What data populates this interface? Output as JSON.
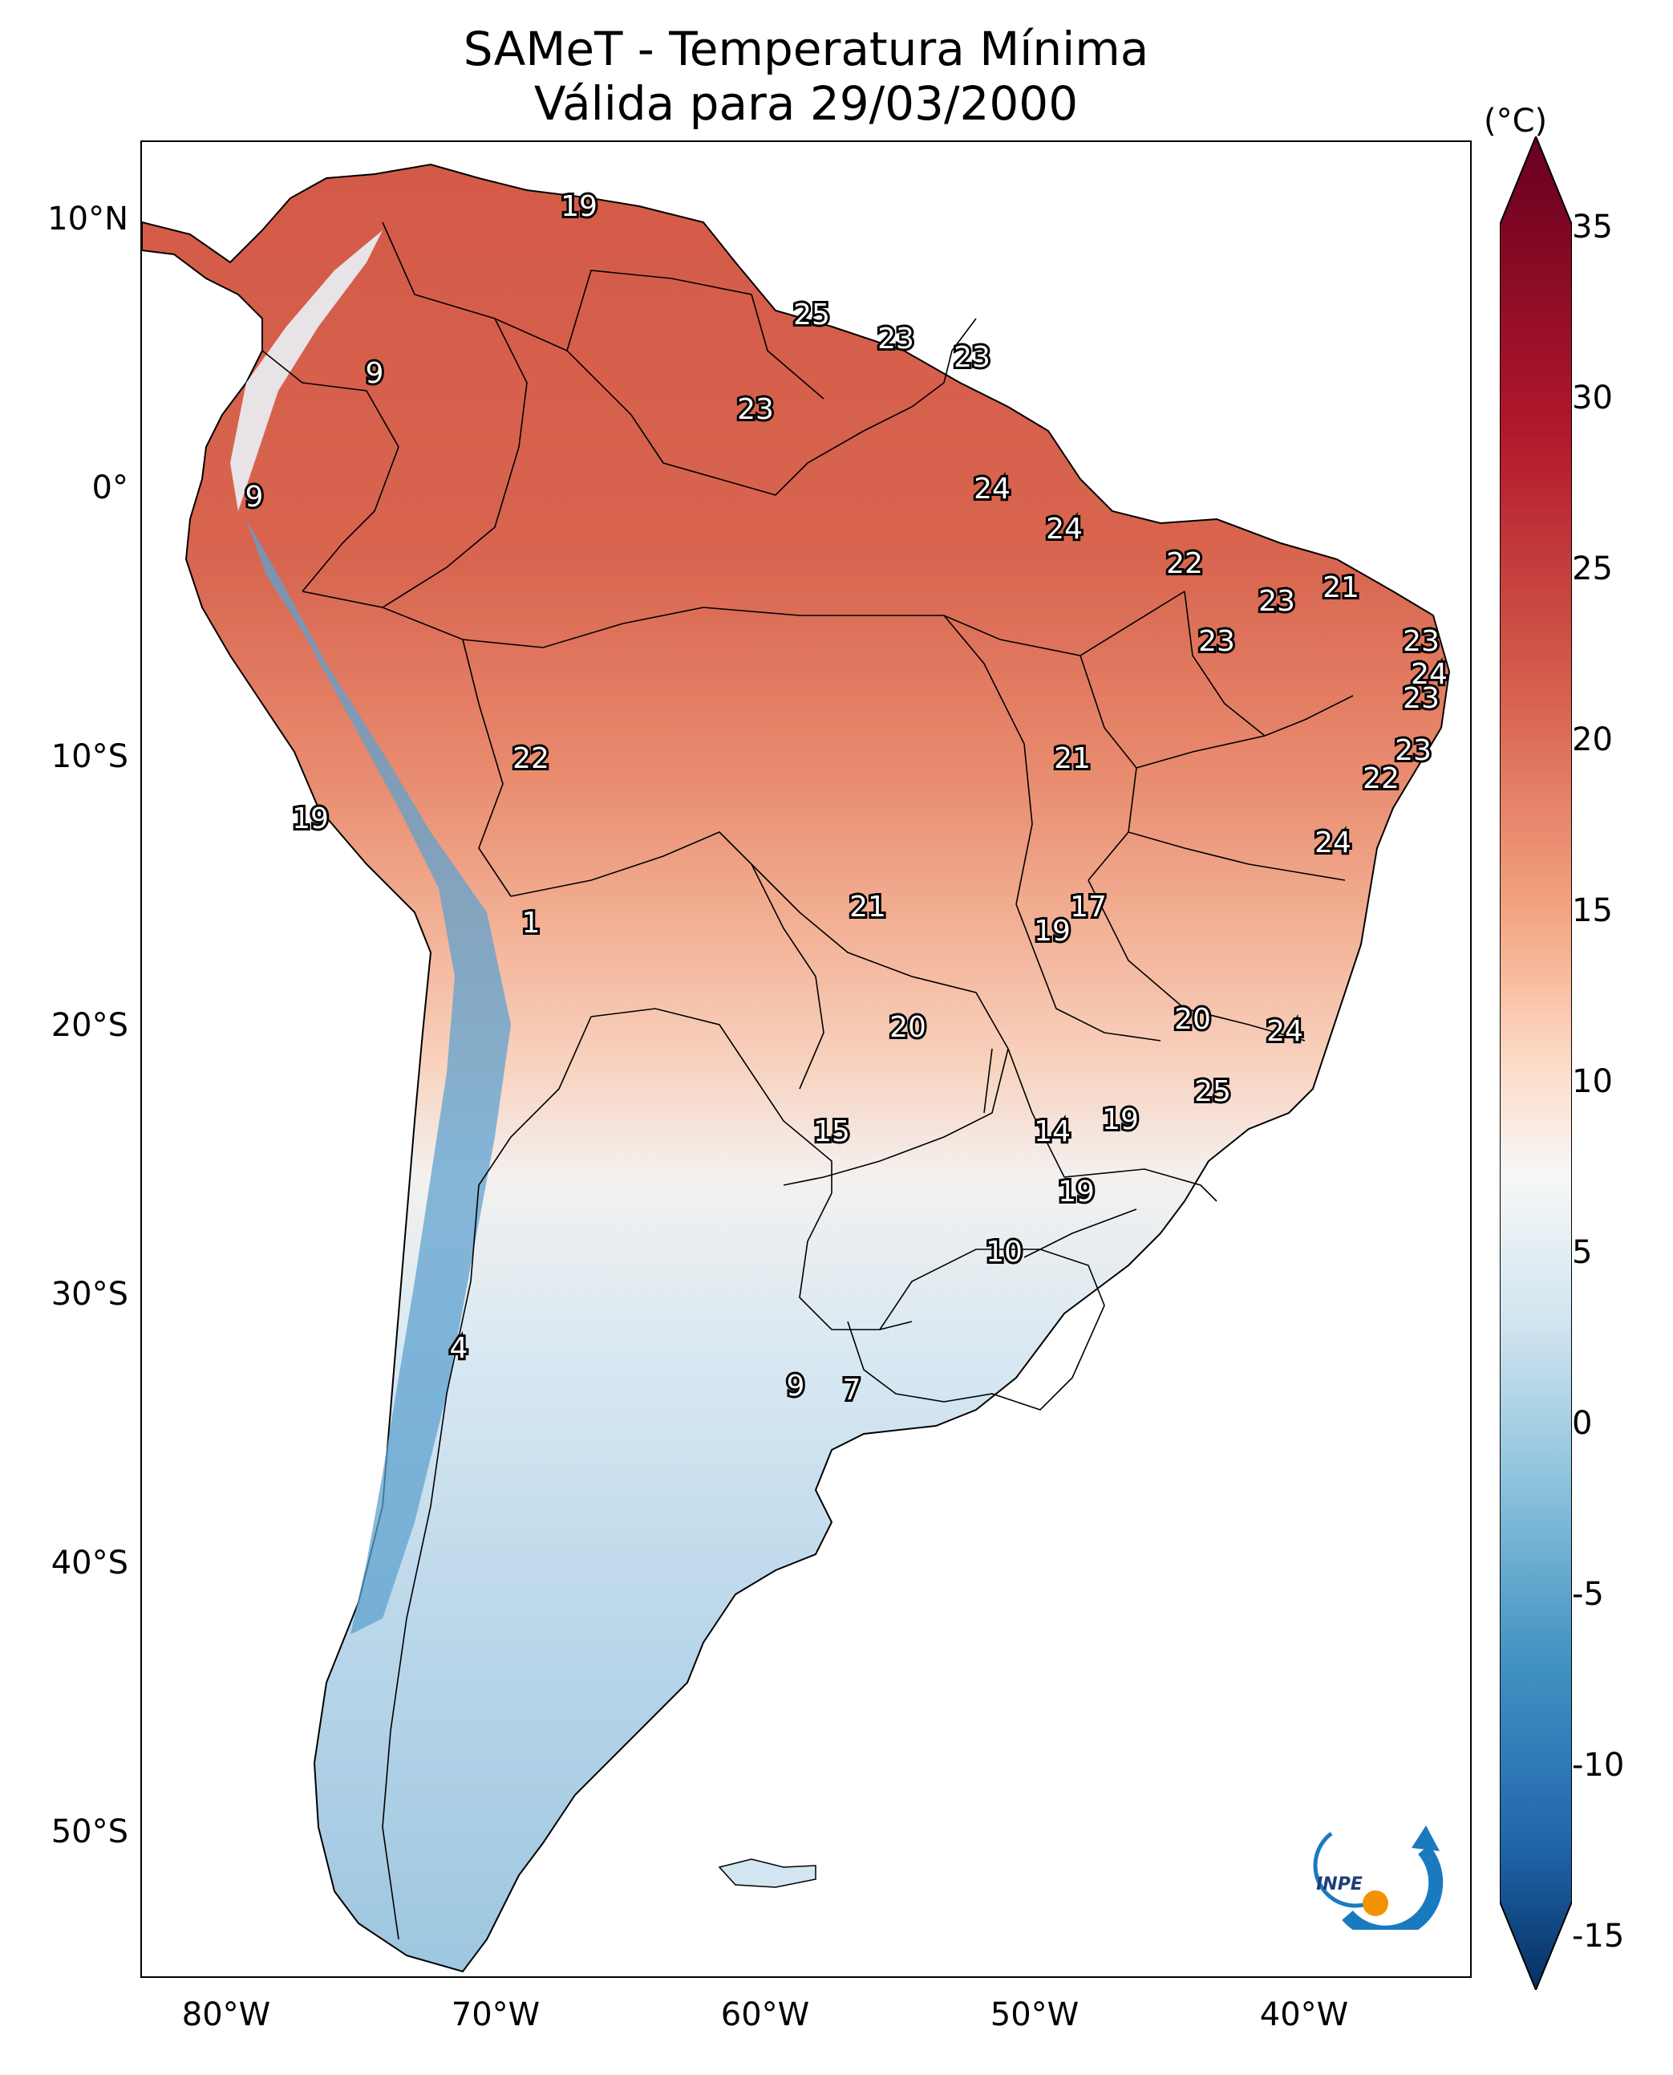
{
  "title": {
    "line1": "SAMeT - Temperatura Mínima",
    "line2": "Válida para 29/03/2000"
  },
  "axes": {
    "lat_ticks": [
      "10°N",
      "0°",
      "10°S",
      "20°S",
      "30°S",
      "40°S",
      "50°S"
    ],
    "lon_ticks": [
      "80°W",
      "70°W",
      "60°W",
      "50°W",
      "40°W"
    ]
  },
  "colorbar": {
    "unit": "(°C)",
    "ticks": [
      "35",
      "30",
      "25",
      "20",
      "15",
      "10",
      "5",
      "0",
      "-5",
      "-10",
      "-15"
    ],
    "colors": {
      "max": "#67001f",
      "hot": "#b2182b",
      "warm": "#d6604d",
      "mild": "#f4a582",
      "neutral": "#f7f7f7",
      "cool": "#92c5de",
      "cold": "#4393c3",
      "min": "#053061"
    }
  },
  "map_values": [
    "19",
    "25",
    "23",
    "23",
    "9",
    "23",
    "9",
    "24",
    "24",
    "22",
    "23",
    "21",
    "23",
    "23",
    "24",
    "23",
    "23",
    "22",
    "21",
    "22",
    "19",
    "24",
    "17",
    "19",
    "1",
    "21",
    "20",
    "20",
    "24",
    "25",
    "19",
    "15",
    "14",
    "19",
    "10",
    "4",
    "9",
    "7"
  ],
  "logo": {
    "text": "INPE"
  }
}
